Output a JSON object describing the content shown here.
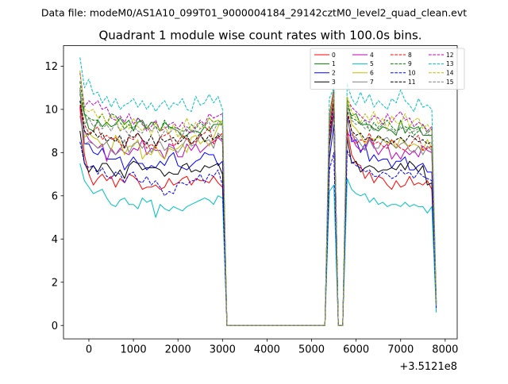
{
  "chart_data": {
    "type": "line",
    "supertitle": "Data file: modeM0/AS1A10_099T01_9000004184_29142cztM0_level2_quad_clean.evt",
    "title": "Quadrant 1 module wise count rates with 100.0s bins.",
    "xlabel": "",
    "ylabel": "",
    "x_offset_label": "+3.5121e8",
    "xlim": [
      -570,
      8270
    ],
    "ylim": [
      -0.62,
      12.95
    ],
    "x_ticks": [
      0,
      1000,
      2000,
      3000,
      4000,
      5000,
      6000,
      7000,
      8000
    ],
    "y_ticks": [
      0,
      2,
      4,
      6,
      8,
      10,
      12
    ],
    "x": [
      -200,
      -100,
      0,
      100,
      200,
      300,
      400,
      500,
      600,
      700,
      800,
      900,
      1000,
      1100,
      1200,
      1300,
      1400,
      1500,
      1600,
      1700,
      1800,
      1900,
      2000,
      2100,
      2200,
      2300,
      2400,
      2500,
      2600,
      2700,
      2800,
      2900,
      3000,
      3100,
      3200,
      5300,
      5400,
      5500,
      5600,
      5700,
      5800,
      5900,
      6000,
      6100,
      6200,
      6300,
      6400,
      6500,
      6600,
      6700,
      6800,
      6900,
      7000,
      7100,
      7200,
      7300,
      7400,
      7500,
      7600,
      7700,
      7800
    ],
    "legend": {
      "location": "upper right",
      "columns": 4
    },
    "series": [
      {
        "name": "0",
        "color": "#ff0000",
        "dash": "solid",
        "values": [
          10.1,
          7.9,
          7.0,
          6.5,
          6.8,
          7.0,
          6.7,
          6.9,
          6.4,
          6.8,
          6.6,
          7.0,
          6.9,
          6.7,
          6.3,
          6.4,
          6.4,
          6.5,
          6.3,
          6.4,
          6.8,
          6.5,
          6.6,
          6.8,
          6.9,
          6.5,
          6.8,
          6.7,
          6.7,
          6.6,
          6.9,
          6.6,
          6.4,
          0.0,
          0.0,
          0.0,
          9.0,
          10.4,
          0.0,
          0.0,
          9.1,
          7.9,
          7.5,
          7.4,
          6.8,
          7.1,
          6.6,
          6.9,
          6.8,
          6.5,
          6.3,
          6.7,
          6.4,
          6.5,
          6.9,
          6.5,
          6.6,
          6.5,
          6.7,
          6.3,
          1.1
        ]
      },
      {
        "name": "1",
        "color": "#008000",
        "dash": "solid",
        "values": [
          10.7,
          9.8,
          9.1,
          9.0,
          9.5,
          9.2,
          9.4,
          9.2,
          9.3,
          9.6,
          9.3,
          9.5,
          9.0,
          9.4,
          9.5,
          9.1,
          9.4,
          9.4,
          9.0,
          9.4,
          9.2,
          9.1,
          9.0,
          8.7,
          8.8,
          9.0,
          9.0,
          8.9,
          9.2,
          9.0,
          9.3,
          9.3,
          9.3,
          0.0,
          0.0,
          0.0,
          9.5,
          10.9,
          0.0,
          0.0,
          10.1,
          9.7,
          9.8,
          9.3,
          9.3,
          9.3,
          9.1,
          9.0,
          9.2,
          9.1,
          9.0,
          8.8,
          9.5,
          8.9,
          9.2,
          9.1,
          9.2,
          8.8,
          8.8,
          8.8,
          1.0
        ]
      },
      {
        "name": "2",
        "color": "#0000ff",
        "dash": "solid",
        "values": [
          10.9,
          8.4,
          8.4,
          8.0,
          7.9,
          8.2,
          7.7,
          7.7,
          7.7,
          7.8,
          7.2,
          7.5,
          7.8,
          7.5,
          7.5,
          7.2,
          7.4,
          7.3,
          7.6,
          7.4,
          7.8,
          8.0,
          7.4,
          7.3,
          7.2,
          7.4,
          7.6,
          7.7,
          8.0,
          7.9,
          7.9,
          7.4,
          7.6,
          0.0,
          0.0,
          0.0,
          7.7,
          9.3,
          0.0,
          0.0,
          9.7,
          8.5,
          8.6,
          8.0,
          8.4,
          7.6,
          7.9,
          7.6,
          7.7,
          7.7,
          7.3,
          7.6,
          7.6,
          7.8,
          7.2,
          7.2,
          7.4,
          7.5,
          7.1,
          7.1,
          0.9
        ]
      },
      {
        "name": "3",
        "color": "#000000",
        "dash": "solid",
        "values": [
          9.0,
          7.5,
          7.1,
          7.4,
          7.1,
          7.5,
          7.5,
          7.2,
          6.9,
          7.2,
          6.8,
          7.4,
          7.6,
          7.5,
          7.2,
          7.3,
          7.3,
          7.3,
          7.2,
          6.9,
          7.1,
          7.0,
          7.0,
          7.4,
          7.5,
          7.1,
          7.2,
          7.1,
          7.4,
          7.3,
          7.4,
          7.5,
          7.0,
          0.0,
          0.0,
          0.0,
          8.3,
          9.9,
          0.0,
          0.0,
          8.7,
          7.5,
          7.6,
          7.1,
          7.3,
          7.4,
          7.3,
          7.1,
          7.2,
          7.2,
          7.3,
          7.2,
          7.5,
          7.2,
          7.6,
          7.4,
          7.1,
          7.4,
          6.5,
          6.6,
          1.2
        ]
      },
      {
        "name": "4",
        "color": "#bf00bf",
        "dash": "solid",
        "values": [
          10.2,
          9.0,
          8.6,
          8.4,
          8.2,
          8.4,
          7.6,
          8.2,
          7.9,
          8.2,
          8.0,
          7.9,
          8.2,
          8.1,
          8.6,
          7.9,
          8.2,
          8.1,
          8.1,
          7.7,
          8.4,
          8.3,
          7.8,
          7.8,
          8.4,
          8.1,
          8.4,
          8.0,
          8.2,
          8.4,
          8.5,
          8.7,
          8.5,
          0.0,
          0.0,
          0.0,
          8.7,
          10.0,
          0.0,
          0.0,
          8.9,
          8.7,
          8.3,
          8.1,
          8.2,
          8.7,
          8.3,
          7.9,
          8.2,
          8.4,
          7.7,
          8.0,
          7.7,
          8.1,
          7.9,
          8.1,
          7.8,
          8.3,
          8.1,
          8.0,
          0.8
        ]
      },
      {
        "name": "5",
        "color": "#00bfbf",
        "dash": "solid",
        "values": [
          7.5,
          6.7,
          6.4,
          6.1,
          6.2,
          6.3,
          5.9,
          5.6,
          5.5,
          5.8,
          5.9,
          5.6,
          5.6,
          5.4,
          5.9,
          5.7,
          5.8,
          5.0,
          5.6,
          5.4,
          5.3,
          5.5,
          5.4,
          5.3,
          5.5,
          5.6,
          5.7,
          5.8,
          5.9,
          5.8,
          5.6,
          6.0,
          5.9,
          0.0,
          0.0,
          0.0,
          6.2,
          6.5,
          0.0,
          0.0,
          6.8,
          6.3,
          6.1,
          6.0,
          6.1,
          5.7,
          5.9,
          5.6,
          5.7,
          5.5,
          5.6,
          5.6,
          5.5,
          5.7,
          5.5,
          5.6,
          5.5,
          5.5,
          5.2,
          5.5,
          0.6
        ]
      },
      {
        "name": "6",
        "color": "#bfbf00",
        "dash": "solid",
        "values": [
          11.0,
          8.7,
          8.9,
          8.7,
          8.6,
          8.3,
          8.5,
          8.1,
          8.8,
          8.5,
          7.9,
          8.3,
          8.3,
          8.6,
          7.7,
          8.0,
          7.9,
          8.3,
          7.9,
          7.7,
          8.2,
          8.1,
          8.2,
          8.4,
          8.0,
          8.7,
          8.8,
          8.4,
          8.6,
          8.3,
          8.7,
          9.2,
          9.5,
          0.0,
          0.0,
          0.0,
          9.8,
          11.0,
          0.0,
          0.0,
          10.5,
          9.3,
          9.1,
          8.8,
          8.4,
          8.7,
          8.6,
          8.7,
          8.6,
          8.4,
          8.6,
          8.2,
          8.7,
          8.4,
          8.3,
          8.4,
          8.3,
          8.1,
          8.6,
          8.2,
          1.0
        ]
      },
      {
        "name": "7",
        "color": "#808080",
        "dash": "solid",
        "values": [
          9.7,
          8.4,
          8.5,
          8.4,
          8.2,
          8.3,
          8.5,
          8.1,
          7.9,
          8.1,
          8.6,
          8.0,
          8.4,
          8.5,
          8.2,
          8.5,
          8.0,
          8.4,
          8.5,
          8.1,
          8.3,
          8.2,
          8.0,
          8.3,
          8.7,
          8.3,
          8.4,
          8.8,
          8.5,
          8.6,
          8.2,
          8.9,
          8.7,
          0.0,
          0.0,
          0.0,
          9.1,
          10.5,
          0.0,
          0.0,
          9.5,
          8.8,
          8.7,
          8.4,
          8.1,
          8.6,
          8.2,
          8.2,
          8.6,
          8.7,
          8.4,
          8.2,
          8.4,
          8.5,
          8.1,
          8.0,
          8.3,
          7.9,
          8.3,
          8.1,
          0.9
        ]
      },
      {
        "name": "8",
        "color": "#ff0000",
        "dash": "dashed",
        "values": [
          10.2,
          9.3,
          8.9,
          9.0,
          9.2,
          8.6,
          8.8,
          8.6,
          8.7,
          8.4,
          8.2,
          8.7,
          8.6,
          8.9,
          8.6,
          8.2,
          8.4,
          8.2,
          8.7,
          8.8,
          8.9,
          8.3,
          8.5,
          8.8,
          8.6,
          8.4,
          8.5,
          8.8,
          8.9,
          9.2,
          8.4,
          8.7,
          8.9,
          0.0,
          0.0,
          0.0,
          9.1,
          10.6,
          0.0,
          0.0,
          9.8,
          9.0,
          8.4,
          8.6,
          8.5,
          8.9,
          8.4,
          8.5,
          8.3,
          8.2,
          8.6,
          8.4,
          8.2,
          8.1,
          8.3,
          8.6,
          8.8,
          8.1,
          8.2,
          8.3,
          1.1
        ]
      },
      {
        "name": "9",
        "color": "#008000",
        "dash": "dashed",
        "values": [
          11.3,
          9.8,
          9.6,
          9.5,
          9.5,
          9.8,
          9.3,
          9.8,
          9.7,
          9.4,
          9.1,
          9.3,
          9.0,
          9.6,
          9.3,
          9.1,
          9.4,
          9.2,
          9.0,
          9.5,
          9.1,
          9.2,
          9.1,
          9.0,
          9.0,
          9.3,
          9.1,
          9.4,
          9.2,
          9.6,
          9.4,
          9.5,
          9.3,
          0.0,
          0.0,
          0.0,
          9.4,
          10.8,
          0.0,
          0.0,
          10.4,
          9.6,
          9.5,
          9.3,
          9.5,
          9.0,
          9.4,
          9.1,
          9.3,
          9.5,
          9.2,
          9.0,
          9.1,
          9.2,
          9.1,
          8.8,
          9.0,
          9.3,
          8.9,
          9.1,
          1.1
        ]
      },
      {
        "name": "10",
        "color": "#0000ff",
        "dash": "dashed",
        "values": [
          8.5,
          7.5,
          7.3,
          7.4,
          7.0,
          7.3,
          6.9,
          6.8,
          7.1,
          7.0,
          6.6,
          7.0,
          7.1,
          6.7,
          6.6,
          6.9,
          6.5,
          6.7,
          6.4,
          6.0,
          6.2,
          6.1,
          6.6,
          6.6,
          6.5,
          6.7,
          6.7,
          7.0,
          6.6,
          7.0,
          6.9,
          7.2,
          6.5,
          0.0,
          0.0,
          0.0,
          7.2,
          8.0,
          0.0,
          0.0,
          8.1,
          7.6,
          7.4,
          7.3,
          7.1,
          7.2,
          6.9,
          6.9,
          7.1,
          7.0,
          6.8,
          6.9,
          7.2,
          7.0,
          7.1,
          6.8,
          7.1,
          6.9,
          6.8,
          6.7,
          0.8
        ]
      },
      {
        "name": "11",
        "color": "#000000",
        "dash": "dashed",
        "values": [
          10.4,
          9.0,
          8.8,
          9.0,
          8.7,
          8.9,
          8.5,
          8.7,
          8.5,
          8.8,
          8.2,
          8.8,
          8.7,
          8.9,
          8.6,
          8.4,
          8.8,
          8.3,
          8.7,
          8.5,
          8.6,
          8.7,
          8.4,
          8.6,
          8.8,
          8.4,
          8.6,
          8.9,
          8.5,
          8.8,
          8.6,
          8.8,
          8.6,
          0.0,
          0.0,
          0.0,
          8.9,
          10.3,
          0.0,
          0.0,
          10.0,
          9.0,
          8.8,
          8.9,
          8.6,
          8.7,
          8.5,
          8.8,
          8.6,
          8.5,
          8.4,
          8.6,
          8.7,
          8.5,
          8.8,
          8.7,
          8.5,
          8.6,
          8.4,
          8.5,
          1.0
        ]
      },
      {
        "name": "12",
        "color": "#bf00bf",
        "dash": "dashed",
        "values": [
          11.7,
          10.1,
          10.4,
          10.2,
          10.4,
          10.0,
          10.1,
          9.6,
          9.5,
          9.7,
          9.4,
          9.8,
          9.3,
          9.6,
          9.4,
          9.0,
          9.2,
          9.5,
          9.0,
          9.1,
          9.3,
          9.4,
          9.1,
          9.4,
          9.0,
          8.9,
          9.2,
          9.5,
          9.3,
          9.8,
          9.6,
          9.7,
          9.8,
          0.0,
          0.0,
          0.0,
          9.7,
          10.9,
          0.0,
          0.0,
          10.5,
          10.1,
          9.9,
          9.7,
          9.5,
          9.4,
          9.7,
          9.6,
          9.3,
          9.8,
          9.4,
          9.7,
          9.9,
          9.5,
          9.6,
          9.2,
          9.4,
          9.3,
          9.0,
          9.2,
          1.1
        ]
      },
      {
        "name": "13",
        "color": "#00bfbf",
        "dash": "dashed",
        "values": [
          12.4,
          11.0,
          11.4,
          10.7,
          10.8,
          10.3,
          10.6,
          10.1,
          10.5,
          10.0,
          10.2,
          10.3,
          10.5,
          10.1,
          10.4,
          10.0,
          10.3,
          9.9,
          10.2,
          10.4,
          10.0,
          10.3,
          10.2,
          10.5,
          10.0,
          9.9,
          10.6,
          10.2,
          10.3,
          10.7,
          10.3,
          10.6,
          10.0,
          0.0,
          0.0,
          0.0,
          10.5,
          11.0,
          0.0,
          0.0,
          11.2,
          10.5,
          10.2,
          10.8,
          10.3,
          10.7,
          10.1,
          10.4,
          10.2,
          10.0,
          10.5,
          10.3,
          10.9,
          10.4,
          10.2,
          9.9,
          10.5,
          10.1,
          10.2,
          10.0,
          1.2
        ]
      },
      {
        "name": "14",
        "color": "#bfbf00",
        "dash": "dashed",
        "values": [
          11.8,
          10.0,
          9.9,
          10.0,
          9.6,
          9.8,
          9.3,
          9.7,
          9.6,
          9.0,
          9.4,
          9.1,
          9.6,
          9.2,
          9.0,
          9.3,
          8.8,
          9.4,
          9.0,
          9.2,
          8.9,
          9.3,
          8.7,
          9.1,
          9.6,
          9.0,
          9.4,
          9.1,
          9.2,
          9.6,
          9.4,
          9.5,
          9.4,
          0.0,
          0.0,
          0.0,
          9.6,
          10.7,
          0.0,
          0.0,
          10.6,
          9.9,
          9.6,
          9.4,
          9.8,
          9.5,
          9.9,
          9.3,
          9.6,
          9.1,
          9.7,
          9.4,
          9.3,
          9.8,
          9.2,
          9.5,
          9.6,
          9.1,
          9.3,
          9.0,
          1.0
        ]
      },
      {
        "name": "15",
        "color": "#808080",
        "dash": "dashed",
        "values": [
          11.0,
          9.3,
          9.6,
          9.2,
          9.4,
          9.1,
          9.3,
          9.0,
          9.4,
          9.0,
          9.1,
          8.8,
          9.2,
          9.0,
          8.9,
          9.3,
          9.0,
          9.2,
          8.7,
          9.0,
          8.9,
          9.1,
          9.0,
          8.8,
          9.2,
          9.0,
          8.9,
          9.1,
          9.3,
          9.4,
          9.0,
          9.4,
          9.2,
          0.0,
          0.0,
          0.0,
          9.5,
          10.7,
          0.0,
          0.0,
          10.2,
          9.5,
          9.3,
          9.4,
          9.1,
          9.3,
          9.0,
          9.2,
          9.4,
          9.0,
          9.1,
          8.9,
          9.2,
          9.1,
          8.9,
          9.0,
          9.1,
          8.8,
          8.9,
          8.7,
          0.9
        ]
      }
    ]
  }
}
